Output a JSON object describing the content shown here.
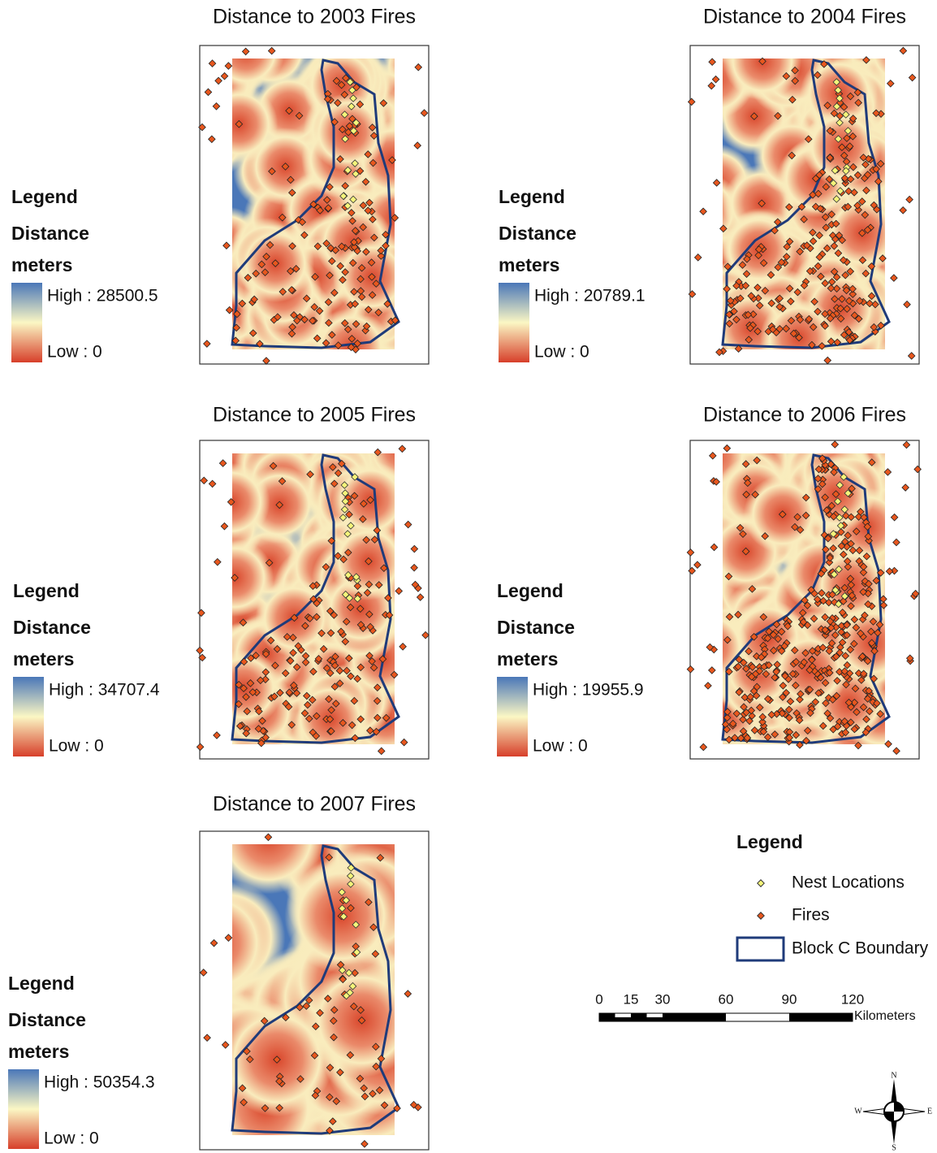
{
  "panels": [
    {
      "title": "Distance to 2003 Fires",
      "legend": {
        "title": "Legend",
        "field": "Distance",
        "unit": "meters",
        "high": "High : 28500.5",
        "low": "Low : 0"
      }
    },
    {
      "title": "Distance to 2004 Fires",
      "legend": {
        "title": "Legend",
        "field": "Distance",
        "unit": "meters",
        "high": "High : 20789.1",
        "low": "Low : 0"
      }
    },
    {
      "title": "Distance to 2005 Fires",
      "legend": {
        "title": "Legend",
        "field": "Distance",
        "unit": "meters",
        "high": "High : 34707.4",
        "low": "Low : 0"
      }
    },
    {
      "title": "Distance to 2006 Fires",
      "legend": {
        "title": "Legend",
        "field": "Distance",
        "unit": "meters",
        "high": "High : 19955.9",
        "low": "Low : 0"
      }
    },
    {
      "title": "Distance to 2007 Fires",
      "legend": {
        "title": "Legend",
        "field": "Distance",
        "unit": "meters",
        "high": "High : 50354.3",
        "low": "Low : 0"
      }
    }
  ],
  "legend": {
    "title": "Legend",
    "items": [
      "Nest Locations",
      "Fires",
      "Block C Boundary"
    ]
  },
  "scale_bar": {
    "ticks": [
      0,
      15,
      30,
      60,
      90,
      120
    ],
    "unit": "Kilometers"
  },
  "north_arrow": {
    "n": "N",
    "e": "E",
    "s": "S",
    "w": "W"
  }
}
